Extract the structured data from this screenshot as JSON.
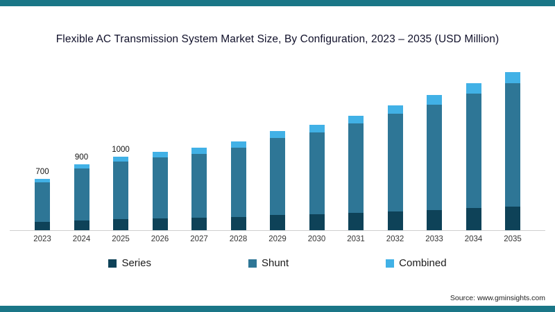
{
  "page": {
    "title": "Flexible AC Transmission System Market Size, By Configuration, 2023 – 2035 (USD Million)",
    "source": "Source: www.gminsights.com",
    "accent_color": "#1a7687"
  },
  "chart_data": {
    "type": "bar",
    "stacked": true,
    "title": "Flexible AC Transmission System Market Size, By Configuration, 2023 – 2035 (USD Million)",
    "units": "USD Million",
    "legend_position": "bottom",
    "grid": false,
    "categories": [
      "2023",
      "2024",
      "2025",
      "2026",
      "2027",
      "2028",
      "2029",
      "2030",
      "2031",
      "2032",
      "2033",
      "2034",
      "2035"
    ],
    "series": [
      {
        "name": "Series",
        "color": "#0e4258",
        "values": [
          110,
          135,
          150,
          160,
          168,
          182,
          203,
          215,
          234,
          255,
          276,
          300,
          323
        ]
      },
      {
        "name": "Shunt",
        "color": "#2e7696",
        "values": [
          540,
          702,
          780,
          835,
          874,
          943,
          1052,
          1115,
          1217,
          1326,
          1435,
          1560,
          1677
        ]
      },
      {
        "name": "Combined",
        "color": "#41b1e6",
        "values": [
          50,
          63,
          70,
          75,
          78,
          85,
          95,
          100,
          109,
          119,
          129,
          140,
          150
        ]
      }
    ],
    "totals": [
      700,
      900,
      1000,
      1070,
      1120,
      1210,
      1350,
      1430,
      1560,
      1700,
      1840,
      2000,
      2150
    ],
    "data_labels": [
      "700",
      "900",
      "1000",
      null,
      null,
      null,
      null,
      null,
      null,
      null,
      null,
      null,
      null
    ]
  }
}
